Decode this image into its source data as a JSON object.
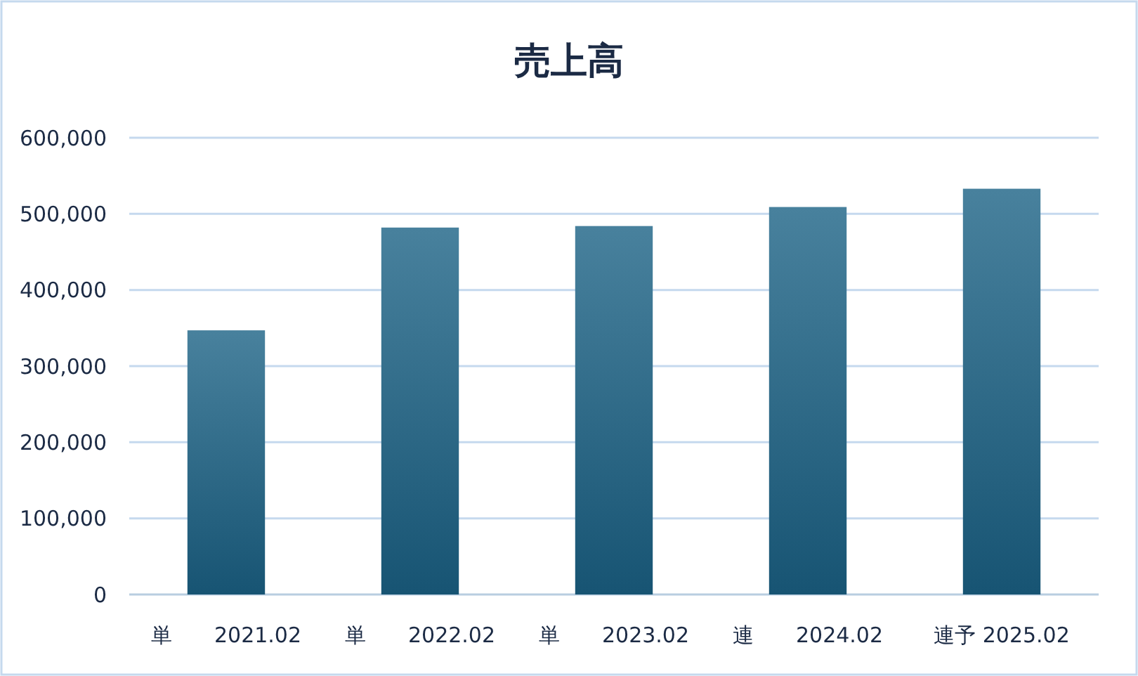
{
  "chart_data": {
    "type": "bar",
    "title": "売上高",
    "categories": [
      "単　　2021.02",
      "単　　2022.02",
      "単　　2023.02",
      "連　　2024.02",
      "連予 2025.02"
    ],
    "values": [
      347000,
      482000,
      484000,
      509000,
      533000
    ],
    "color": "#1a6185",
    "ylim": [
      0,
      600000
    ],
    "yticks": [
      {
        "value": 0,
        "label": "0"
      },
      {
        "value": 100000,
        "label": "100,000"
      },
      {
        "value": 200000,
        "label": "200,000"
      },
      {
        "value": 300000,
        "label": "300,000"
      },
      {
        "value": 400000,
        "label": "400,000"
      },
      {
        "value": 500000,
        "label": "500,000"
      },
      {
        "value": 600000,
        "label": "600,000"
      }
    ],
    "grid": "y"
  }
}
